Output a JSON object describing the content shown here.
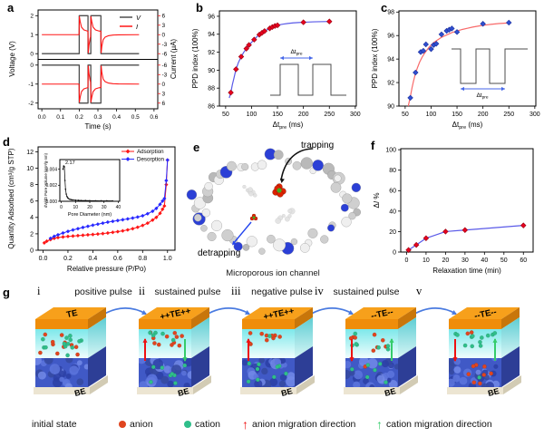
{
  "figure": {
    "panel_letters": [
      "a",
      "b",
      "c",
      "d",
      "e",
      "f",
      "g"
    ]
  },
  "chart_data": [
    {
      "id": "a",
      "type": "line",
      "xlabel": "Time (s)",
      "ylabel_left": "Voltage (V)",
      "ylabel_right": "Current (μA)",
      "xlim": [
        -0.02,
        0.62
      ],
      "xticks": [
        0.0,
        0.1,
        0.2,
        0.3,
        0.4,
        0.5,
        0.6
      ],
      "legend": [
        {
          "label": "V",
          "color": "#4d4d4d"
        },
        {
          "label": "I",
          "color": "#ff1616"
        }
      ],
      "colors": {
        "voltage": "#4d4d4d",
        "current": "#ff1616"
      },
      "subplots": [
        {
          "sign": 1,
          "yticks_left": [
            0,
            1,
            2
          ],
          "yticks_right": [
            6,
            3,
            0,
            -3,
            -6
          ]
        },
        {
          "sign": -1,
          "yticks_left": [
            0,
            -1,
            -2
          ],
          "yticks_right": [
            6,
            3,
            0,
            -3,
            -6
          ]
        }
      ],
      "voltage_pulse": [
        [
          0,
          0
        ],
        [
          0.2,
          0
        ],
        [
          0.2,
          2
        ],
        [
          0.247,
          2
        ],
        [
          0.247,
          0
        ],
        [
          0.262,
          0
        ],
        [
          0.262,
          2
        ],
        [
          0.316,
          2
        ],
        [
          0.316,
          0
        ],
        [
          0.52,
          0
        ]
      ],
      "current_response": [
        [
          0,
          0
        ],
        [
          0.199,
          0
        ],
        [
          0.201,
          5.7
        ],
        [
          0.205,
          4.2
        ],
        [
          0.212,
          2.4
        ],
        [
          0.225,
          1.5
        ],
        [
          0.244,
          1.15
        ],
        [
          0.2465,
          1.1
        ],
        [
          0.2485,
          -5.7
        ],
        [
          0.252,
          -3.4
        ],
        [
          0.258,
          -1.2
        ],
        [
          0.2605,
          -0.7
        ],
        [
          0.2625,
          5.7
        ],
        [
          0.267,
          4.2
        ],
        [
          0.274,
          2.4
        ],
        [
          0.287,
          1.5
        ],
        [
          0.306,
          1.15
        ],
        [
          0.3155,
          1.1
        ],
        [
          0.3175,
          -5.7
        ],
        [
          0.321,
          -3.6
        ],
        [
          0.328,
          -1.6
        ],
        [
          0.338,
          -0.8
        ],
        [
          0.355,
          -0.35
        ],
        [
          0.38,
          -0.12
        ],
        [
          0.41,
          -0.04
        ],
        [
          0.52,
          0
        ]
      ]
    },
    {
      "id": "b",
      "type": "scatter-line",
      "xlabel": {
        "main": "Δt",
        "sub": "pre",
        "unit": " (ms)"
      },
      "ylabel": "PPD index (100%)",
      "xlim": [
        38,
        302
      ],
      "ylim": [
        86,
        96.6
      ],
      "xticks": [
        50,
        100,
        150,
        200,
        250,
        300
      ],
      "yticks": [
        86,
        88,
        90,
        92,
        94,
        96
      ],
      "x": [
        60,
        70,
        80,
        90,
        95,
        105,
        115,
        120,
        125,
        135,
        140,
        145,
        150,
        200,
        250
      ],
      "y": [
        87.5,
        90.1,
        91.5,
        92.4,
        92.8,
        93.4,
        93.95,
        94.15,
        94.35,
        94.65,
        94.8,
        94.92,
        95.0,
        95.33,
        95.42
      ],
      "fit": [
        [
          57,
          86.9
        ],
        [
          60,
          87.5
        ],
        [
          63,
          88.4
        ],
        [
          66,
          89.1
        ],
        [
          70,
          90.1
        ],
        [
          75,
          90.9
        ],
        [
          80,
          91.5
        ],
        [
          85,
          92.0
        ],
        [
          90,
          92.4
        ],
        [
          95,
          92.8
        ],
        [
          100,
          93.1
        ],
        [
          105,
          93.4
        ],
        [
          110,
          93.7
        ],
        [
          115,
          93.95
        ],
        [
          120,
          94.15
        ],
        [
          125,
          94.35
        ],
        [
          130,
          94.5
        ],
        [
          135,
          94.65
        ],
        [
          140,
          94.8
        ],
        [
          145,
          94.92
        ],
        [
          150,
          95.0
        ],
        [
          160,
          95.12
        ],
        [
          170,
          95.2
        ],
        [
          180,
          95.26
        ],
        [
          190,
          95.3
        ],
        [
          200,
          95.33
        ],
        [
          220,
          95.38
        ],
        [
          250,
          95.42
        ]
      ],
      "marker_color": "#e8001f",
      "marker_stroke": "#99000f",
      "line_color": "#5a5ae8",
      "inset": {
        "polarity": "positive",
        "label": {
          "main": "Δt",
          "sub": "pre"
        },
        "arrow_color": "#4466e8",
        "pulse_color": "#4d4d4d"
      }
    },
    {
      "id": "c",
      "type": "scatter-line",
      "xlabel": {
        "main": "Δt",
        "sub": "pre",
        "unit": " (ms)"
      },
      "ylabel": "PPD index (100%)",
      "xlim": [
        38,
        302
      ],
      "ylim": [
        90,
        98.1
      ],
      "xticks": [
        50,
        100,
        150,
        200,
        250,
        300
      ],
      "yticks": [
        90,
        92,
        94,
        96,
        98
      ],
      "x": [
        60,
        70,
        80,
        85,
        90,
        100,
        105,
        110,
        120,
        130,
        135,
        140,
        150,
        200,
        250
      ],
      "y": [
        90.7,
        92.85,
        94.6,
        94.7,
        95.25,
        94.85,
        95.2,
        95.3,
        96.1,
        96.4,
        96.5,
        96.6,
        96.3,
        97.0,
        97.1
      ],
      "fit": [
        [
          56,
          90.0
        ],
        [
          58,
          90.4
        ],
        [
          60,
          90.8
        ],
        [
          63,
          91.5
        ],
        [
          66,
          92.1
        ],
        [
          70,
          92.8
        ],
        [
          74,
          93.3
        ],
        [
          78,
          93.75
        ],
        [
          82,
          94.1
        ],
        [
          86,
          94.4
        ],
        [
          90,
          94.65
        ],
        [
          95,
          94.95
        ],
        [
          100,
          95.2
        ],
        [
          105,
          95.4
        ],
        [
          110,
          95.55
        ],
        [
          115,
          95.7
        ],
        [
          120,
          95.85
        ],
        [
          125,
          95.95
        ],
        [
          130,
          96.05
        ],
        [
          135,
          96.15
        ],
        [
          140,
          96.25
        ],
        [
          145,
          96.32
        ],
        [
          150,
          96.4
        ],
        [
          160,
          96.52
        ],
        [
          170,
          96.62
        ],
        [
          180,
          96.72
        ],
        [
          190,
          96.8
        ],
        [
          200,
          96.87
        ],
        [
          215,
          96.95
        ],
        [
          230,
          97.02
        ],
        [
          250,
          97.08
        ]
      ],
      "marker_color": "#2f4fd0",
      "marker_stroke": "#1c2f9e",
      "line_color": "#f86a6a",
      "inset": {
        "polarity": "negative",
        "label": {
          "main": "Δt",
          "sub": "pre"
        },
        "arrow_color": "#4466e8",
        "pulse_color": "#4d4d4d"
      }
    },
    {
      "id": "d",
      "type": "isotherm",
      "xlabel": "Relative pressure (P/Po)",
      "ylabel": "Quantity Adsorbed (cm³/g STP)",
      "xlim": [
        -0.04,
        1.06
      ],
      "ylim": [
        0,
        12.6
      ],
      "xticks": [
        0.0,
        0.2,
        0.4,
        0.6,
        0.8,
        1.0
      ],
      "yticks": [
        0,
        2,
        4,
        6,
        8,
        10,
        12
      ],
      "series": [
        {
          "name": "Adsorption",
          "color": "#ff1616",
          "x": [
            0.01,
            0.03,
            0.06,
            0.09,
            0.12,
            0.16,
            0.2,
            0.24,
            0.28,
            0.32,
            0.36,
            0.4,
            0.44,
            0.48,
            0.52,
            0.56,
            0.6,
            0.64,
            0.68,
            0.72,
            0.76,
            0.8,
            0.84,
            0.88,
            0.91,
            0.94,
            0.96,
            0.975,
            0.99,
            1.0
          ],
          "y": [
            0.9,
            1.1,
            1.3,
            1.45,
            1.55,
            1.62,
            1.68,
            1.73,
            1.78,
            1.83,
            1.88,
            1.92,
            1.97,
            2.03,
            2.1,
            2.18,
            2.26,
            2.36,
            2.48,
            2.62,
            2.8,
            3.02,
            3.3,
            3.68,
            4.0,
            4.5,
            5.0,
            5.4,
            8.0,
            11.0
          ]
        },
        {
          "name": "Desorption",
          "color": "#2929ff",
          "x": [
            1.0,
            0.99,
            0.975,
            0.96,
            0.94,
            0.91,
            0.88,
            0.84,
            0.8,
            0.76,
            0.72,
            0.68,
            0.64,
            0.6,
            0.56,
            0.52,
            0.48,
            0.44,
            0.4,
            0.36,
            0.32,
            0.28,
            0.24,
            0.2,
            0.16,
            0.12,
            0.09,
            0.06
          ],
          "y": [
            11.0,
            8.5,
            6.3,
            6.0,
            5.6,
            5.1,
            4.75,
            4.45,
            4.2,
            4.05,
            3.92,
            3.82,
            3.72,
            3.62,
            3.52,
            3.42,
            3.3,
            3.18,
            3.05,
            2.92,
            2.78,
            2.63,
            2.47,
            2.3,
            2.1,
            1.88,
            1.7,
            1.45
          ]
        }
      ],
      "inset": {
        "xlabel": "Pore Diameter (nm)",
        "ylabel": "dV/dD Pore Volume (cm³/g·nm)",
        "peak_label": "2.17",
        "peak_x": 2.17,
        "color": "#111111",
        "xlim": [
          -1,
          41
        ],
        "ylim": [
          0,
          0.0052
        ],
        "xticks": [
          0,
          10,
          20,
          30,
          40
        ],
        "yticks": [
          0.0,
          0.002,
          0.004
        ],
        "x": [
          1.2,
          1.7,
          2.17,
          2.6,
          3.0,
          3.5,
          4.0,
          4.5,
          5.0,
          6.0,
          7.0,
          8.0,
          10,
          12,
          14,
          17,
          20,
          24,
          28,
          32,
          36
        ],
        "y": [
          0.004,
          0.0044,
          0.0043,
          0.0026,
          0.0015,
          0.0009,
          0.0006,
          0.00045,
          0.00035,
          0.00025,
          0.0002,
          0.00018,
          0.00014,
          0.00012,
          0.0001,
          0.0001,
          8e-05,
          7e-05,
          6e-05,
          6e-05,
          5e-05
        ]
      }
    },
    {
      "id": "f",
      "type": "scatter-line",
      "xlabel": "Relaxation time (min)",
      "ylabel_parts": [
        {
          "t": "Δ"
        },
        {
          "t": "I",
          "italic": true
        },
        {
          "t": " %"
        }
      ],
      "xlim": [
        -3,
        65
      ],
      "ylim": [
        0,
        101
      ],
      "xticks": [
        0,
        10,
        20,
        30,
        40,
        50,
        60
      ],
      "yticks": [
        0,
        20,
        40,
        60,
        80,
        100
      ],
      "x": [
        1,
        5,
        10,
        20,
        30,
        60
      ],
      "y": [
        2,
        7,
        13.5,
        20,
        21.5,
        26
      ],
      "marker_color": "#e8001f",
      "marker_stroke": "#99000f",
      "line_color": "#5a5ae8"
    }
  ],
  "panel_e": {
    "labels": {
      "trapping": "trapping",
      "detrapping": "detrapping",
      "caption": "Microporous ion channel"
    },
    "colors": {
      "carbon": "#cfcfcf",
      "hydrogen": "#efefef",
      "nitrogen": "#2b3fd6",
      "anion": "#dd2200",
      "cation": "#3fae22",
      "trap_arrow": "#111111",
      "detrap_arrow": "#2244ee"
    }
  },
  "panel_g": {
    "states": [
      {
        "numeral": "i",
        "te_label": "TE",
        "be_label": "BE",
        "cyan_red": 11,
        "cyan_green": 13,
        "blue_red": 0,
        "blue_green": 0,
        "bias": "even",
        "arrows": []
      },
      {
        "numeral": "ii",
        "te_label": "++TE++",
        "be_label": "BE",
        "cyan_red": 11,
        "cyan_green": 5,
        "blue_red": 0,
        "blue_green": 8,
        "bias": "top",
        "arrows": [
          {
            "color": "red",
            "dir": "up",
            "side": "left"
          },
          {
            "color": "green",
            "dir": "down",
            "side": "right"
          }
        ]
      },
      {
        "numeral": "iii",
        "te_label": "++TE++",
        "be_label": "BE",
        "cyan_red": 10,
        "cyan_green": 1,
        "blue_red": 0,
        "blue_green": 9,
        "bias": "top",
        "arrows": [
          {
            "color": "red",
            "dir": "up",
            "side": "left"
          }
        ]
      },
      {
        "numeral": "iv",
        "te_label": "--TE--",
        "be_label": "BE",
        "cyan_red": 8,
        "cyan_green": 7,
        "blue_red": 1,
        "blue_green": 6,
        "bias": "even",
        "arrows": [
          {
            "color": "red",
            "dir": "down",
            "side": "left"
          },
          {
            "color": "green",
            "dir": "up",
            "side": "right"
          }
        ]
      },
      {
        "numeral": "v",
        "te_label": "--TE--",
        "be_label": "BE",
        "cyan_red": 2,
        "cyan_green": 12,
        "blue_red": 8,
        "blue_green": 1,
        "bias": "top",
        "arrows": [
          {
            "color": "red",
            "dir": "down",
            "side": "left"
          },
          {
            "color": "green",
            "dir": "up",
            "side": "right"
          }
        ]
      }
    ],
    "transitions": [
      "positive pulse",
      "sustained pulse",
      "negative pulse",
      "sustained pulse"
    ],
    "legend": [
      {
        "swatch": "none",
        "label": "initial state"
      },
      {
        "swatch": "red-dot",
        "label": "anion"
      },
      {
        "swatch": "green-dot",
        "label": "cation"
      },
      {
        "swatch": "red-arrow",
        "label": "anion migration direction"
      },
      {
        "swatch": "green-arrow",
        "label": "cation migration direction"
      }
    ],
    "colors": {
      "te_top": "#f7a01b",
      "te_front": "#ef8d0a",
      "te_side": "#c8760a",
      "porous": "#4059c6",
      "porous_side": "#2d3e96",
      "granules": [
        "#2b3fa4",
        "#5d76dd",
        "#35499f",
        "#7289e8"
      ],
      "base": "#ece5d2",
      "base_side": "#d2cbb4",
      "anion": "#e0451f",
      "cation": "#2fbe8a",
      "anion_arrow": "#ee1111",
      "cation_arrow": "#35cc6b",
      "transition_arrow": "#4a7be0"
    }
  }
}
